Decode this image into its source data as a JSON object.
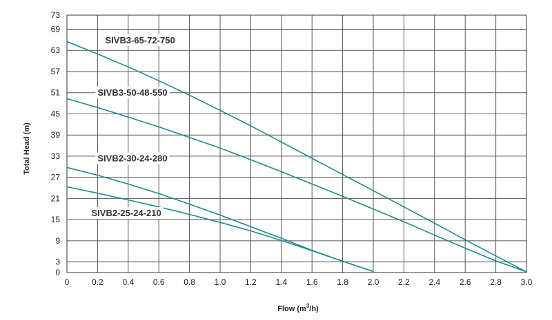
{
  "chart_data": {
    "type": "line",
    "title": "",
    "xlabel": "Flow (m",
    "xlabel_sup": "3",
    "xlabel_suffix": "/h)",
    "ylabel": "Total Head (m)",
    "xlim": [
      0,
      3.0
    ],
    "ylim": [
      0,
      73
    ],
    "xticks": [
      "0",
      "0.2",
      "0.4",
      "0.6",
      "0.8",
      "1.0",
      "1.2",
      "1.4",
      "1.6",
      "1.8",
      "2.0",
      "2.2",
      "2.4",
      "2.6",
      "2.8",
      "3.0"
    ],
    "yticks": [
      "0",
      "3",
      "9",
      "15",
      "21",
      "27",
      "33",
      "39",
      "45",
      "51",
      "57",
      "63",
      "69",
      "73"
    ],
    "grid": true,
    "line_color": "#1d8c8c",
    "series": [
      {
        "name": "SIVB3-65-72-750",
        "x": [
          0,
          0.2,
          0.4,
          0.6,
          0.8,
          1.0,
          1.2,
          1.4,
          1.6,
          1.8,
          2.0,
          2.2,
          2.4,
          2.6,
          2.8,
          3.0
        ],
        "y": [
          65.5,
          62.0,
          58.3,
          54.4,
          50.3,
          46.0,
          41.6,
          37.0,
          32.4,
          27.8,
          23.2,
          18.6,
          14.0,
          9.3,
          4.7,
          0.2
        ]
      },
      {
        "name": "SIVB3-50-48-550",
        "x": [
          0,
          0.2,
          0.4,
          0.6,
          0.8,
          1.0,
          1.2,
          1.4,
          1.6,
          1.8,
          2.0,
          2.2,
          2.4,
          2.6,
          2.8,
          3.0
        ],
        "y": [
          49.3,
          46.8,
          44.1,
          41.3,
          38.3,
          35.3,
          32.0,
          28.6,
          25.1,
          21.6,
          18.0,
          14.4,
          10.6,
          6.9,
          3.3,
          0.2
        ]
      },
      {
        "name": "SIVB2-30-24-280",
        "x": [
          0,
          0.2,
          0.4,
          0.6,
          0.8,
          1.0,
          1.2,
          1.4,
          1.6,
          1.8,
          2.0
        ],
        "y": [
          29.8,
          27.6,
          25.1,
          22.4,
          19.4,
          16.3,
          13.0,
          9.7,
          6.3,
          3.2,
          0.3
        ]
      },
      {
        "name": "SIVB2-25-24-210",
        "x": [
          0,
          0.2,
          0.4,
          0.6,
          0.8,
          1.0,
          1.2,
          1.4,
          1.6,
          1.8,
          2.0
        ],
        "y": [
          24.3,
          22.5,
          20.6,
          18.6,
          16.5,
          14.2,
          11.8,
          9.1,
          6.2,
          3.2,
          0.3
        ]
      }
    ],
    "annotations": [
      {
        "text": "SIVB3-65-72-750",
        "series": 0,
        "at_x": 0.25,
        "at_y": 65.0
      },
      {
        "text": "SIVB3-50-48-550",
        "series": 1,
        "at_x": 0.2,
        "at_y": 50.2
      },
      {
        "text": "SIVB2-30-24-280",
        "series": 2,
        "at_x": 0.2,
        "at_y": 31.5
      },
      {
        "text": "SIVB2-25-24-210",
        "series": 3,
        "at_x": 0.16,
        "at_y": 16.0
      }
    ]
  }
}
